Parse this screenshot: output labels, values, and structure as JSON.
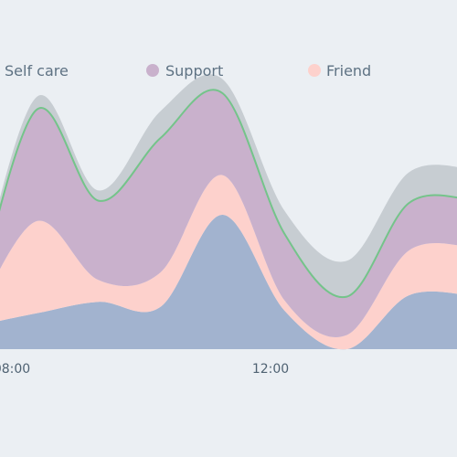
{
  "chart_data": {
    "type": "area",
    "stacked": true,
    "smooth": true,
    "title": "",
    "xlabel": "",
    "ylabel": "",
    "x_ticks": [
      "08:00",
      "12:00"
    ],
    "x": [
      "07:45",
      "08:45",
      "09:45",
      "10:45",
      "11:45",
      "12:45",
      "13:45",
      "14:45",
      "15:15"
    ],
    "legend": {
      "position": "top",
      "items": [
        "Self care",
        "Support",
        "Friend"
      ]
    },
    "grid": false,
    "series": [
      {
        "name": "",
        "color": "#a2b3cf",
        "values": [
          18,
          28,
          37,
          33,
          105,
          30,
          0,
          42,
          42
        ]
      },
      {
        "name": "Friend",
        "color": "#fdd1cc",
        "values": [
          6,
          72,
          17,
          27,
          31,
          8,
          11,
          35,
          38
        ]
      },
      {
        "name": "Support",
        "color": "#c9b1cc",
        "values": [
          10,
          87,
          62,
          105,
          64,
          52,
          30,
          37,
          37
        ]
      },
      {
        "name": "Self care",
        "color": "#c7cdd2",
        "values": [
          6,
          10,
          8,
          21,
          11,
          18,
          28,
          24,
          24
        ]
      }
    ],
    "y_range": [
      0,
      230
    ],
    "boundary_line": {
      "color": "#74c48a",
      "between": [
        "Support",
        "Self care"
      ]
    }
  }
}
